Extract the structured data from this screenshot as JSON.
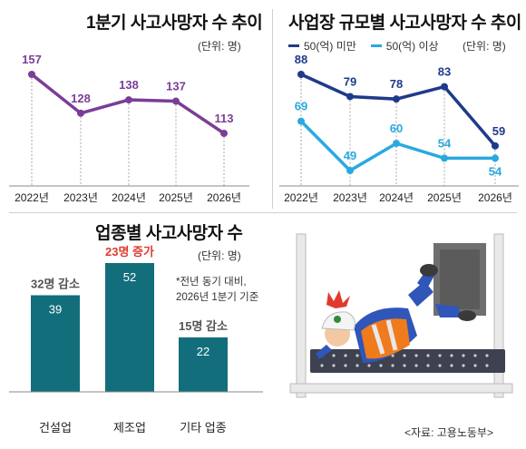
{
  "chart1": {
    "title": "1분기 사고사망자 수 추이",
    "unit": "(단위: 명)"
  },
  "chart2": {
    "title": "사업장 규모별 사고사망자 수 추이",
    "unit": "(단위: 명)",
    "legend": [
      "50(억) 미만",
      "50(억) 이상"
    ]
  },
  "chart3": {
    "title": "업종별 사고사망자 수",
    "unit": "(단위: 명)",
    "note_line1": "*전년 동기 대비,",
    "note_line2": "2026년 1분기 기준"
  },
  "source": "<자료: 고용노동부>",
  "colors": {
    "purple": "#7a3e98",
    "navy": "#1f3a8a",
    "sky": "#29a9e0",
    "teal": "#136e7b",
    "red": "#e03a2e",
    "gray_text": "#555555"
  },
  "chart_data": [
    {
      "type": "line",
      "title": "1분기 사고사망자 수 추이",
      "categories": [
        "2022년",
        "2023년",
        "2024년",
        "2025년",
        "2026년"
      ],
      "series": [
        {
          "values": [
            157,
            128,
            138,
            137,
            113
          ]
        }
      ],
      "grid": false
    },
    {
      "type": "line",
      "title": "사업장 규모별 사고사망자 수 추이",
      "categories": [
        "2022년",
        "2023년",
        "2024년",
        "2025년",
        "2026년"
      ],
      "series": [
        {
          "name": "50(억) 미만",
          "values": [
            88,
            79,
            78,
            83,
            59
          ]
        },
        {
          "name": "50(억) 이상",
          "values": [
            69,
            49,
            60,
            54,
            54
          ]
        }
      ],
      "legend": "top",
      "grid": false
    },
    {
      "type": "bar",
      "title": "업종별 사고사망자 수",
      "categories": [
        "건설업",
        "제조업",
        "기타 업종"
      ],
      "values": [
        39,
        52,
        22
      ],
      "annotations": [
        "32명 감소",
        "23명 증가",
        "15명 감소"
      ]
    }
  ]
}
